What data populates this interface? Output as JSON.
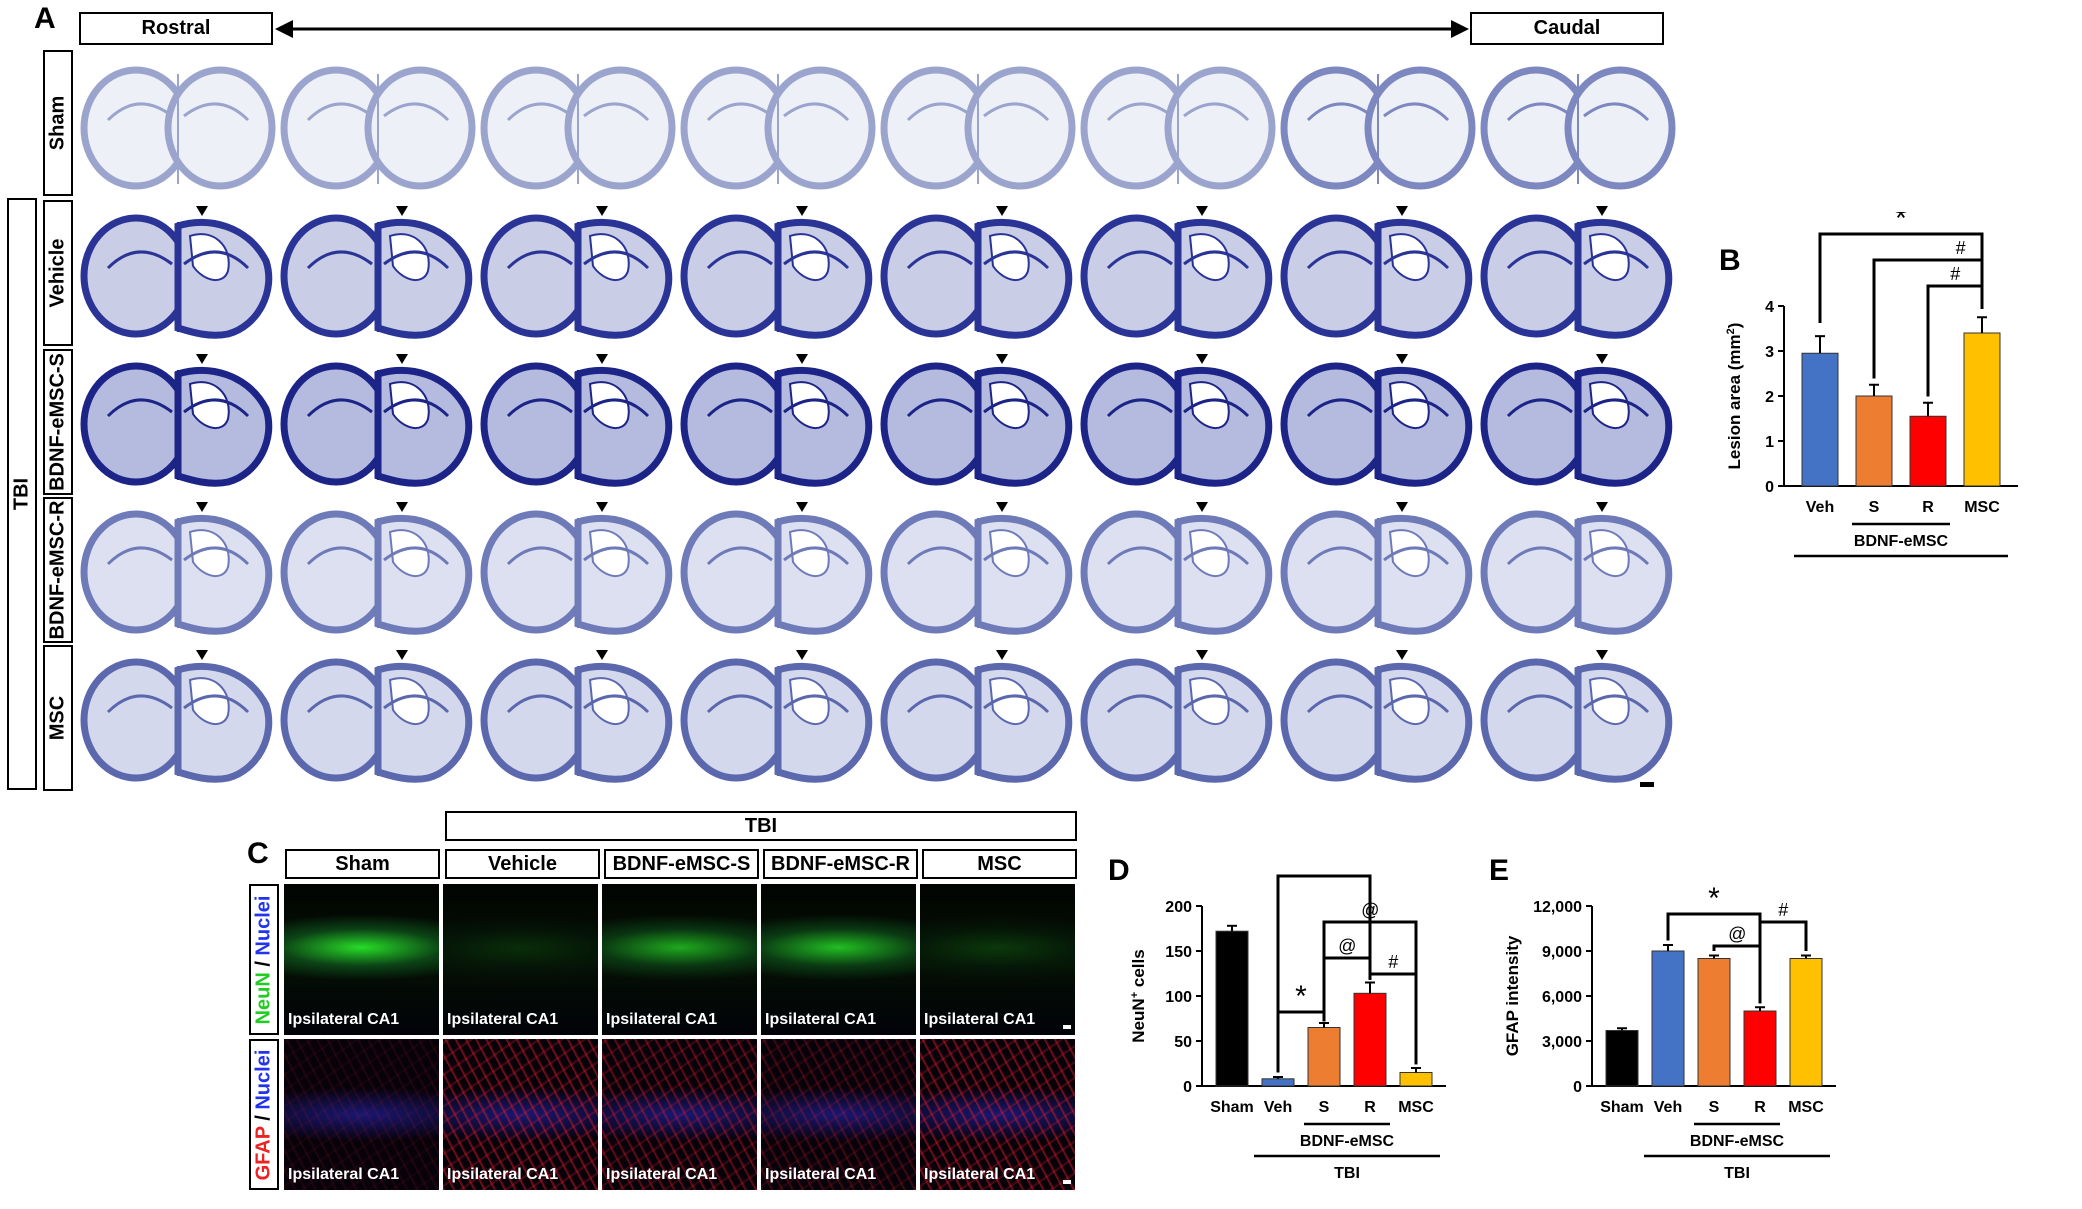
{
  "panels": {
    "A": "A",
    "B": "B",
    "C": "C",
    "D": "D",
    "E": "E"
  },
  "panel_a": {
    "rostral": "Rostral",
    "caudal": "Caudal",
    "tbi": "TBI",
    "rows": [
      "Sham",
      "Vehicle",
      "BDNF-eMSC-S",
      "BDNF-eMSC-R",
      "MSC"
    ],
    "columns": 8
  },
  "panel_c": {
    "tbi": "TBI",
    "columns": [
      "Sham",
      "Vehicle",
      "BDNF-eMSC-S",
      "BDNF-eMSC-R",
      "MSC"
    ],
    "caption": "Ipsilateral CA1",
    "row1_label": {
      "a": "NeuN",
      "sep": " / ",
      "b": "Nuclei"
    },
    "row2_label": {
      "a": "GFAP",
      "sep": " / ",
      "b": "Nuclei"
    },
    "colors": {
      "neun": "#22dd22",
      "nuclei": "#2233ff",
      "gfap": "#ff2222"
    }
  },
  "chart_data": [
    {
      "id": "B",
      "type": "bar",
      "categories": [
        "Veh",
        "S",
        "R",
        "MSC"
      ],
      "values": [
        2.95,
        2.0,
        1.55,
        3.4
      ],
      "errors": [
        0.38,
        0.25,
        0.3,
        0.35
      ],
      "colors": [
        "#4472c4",
        "#ed7d31",
        "#ff0000",
        "#ffc000"
      ],
      "ylabel": "Lesion area (mm",
      "ylabel_sup": "2",
      "ylabel_end": ")",
      "ylim": [
        0,
        4
      ],
      "yticks": [
        "0",
        "1",
        "2",
        "3",
        "4"
      ],
      "group_label": "BDNF-eMSC",
      "outer_label": "TBI",
      "sig": [
        "*",
        "#",
        "#"
      ]
    },
    {
      "id": "D",
      "type": "bar",
      "categories": [
        "Sham",
        "Veh",
        "S",
        "R",
        "MSC"
      ],
      "values": [
        172,
        8,
        65,
        103,
        15
      ],
      "errors": [
        6,
        2,
        5,
        12,
        5
      ],
      "colors": [
        "#000000",
        "#4472c4",
        "#ed7d31",
        "#ff0000",
        "#ffc000"
      ],
      "ylabel": "NeuN",
      "ylabel_sup": "+",
      "ylabel_end": " cells",
      "ylim": [
        0,
        200
      ],
      "yticks": [
        "0",
        "50",
        "100",
        "150",
        "200"
      ],
      "group_label": "BDNF-eMSC",
      "outer_label": "TBI",
      "sig": [
        "*",
        "*",
        "@",
        "@",
        "#"
      ]
    },
    {
      "id": "E",
      "type": "bar",
      "categories": [
        "Sham",
        "Veh",
        "S",
        "R",
        "MSC"
      ],
      "values": [
        3700,
        9000,
        8500,
        5000,
        8500
      ],
      "errors": [
        150,
        400,
        200,
        250,
        200
      ],
      "colors": [
        "#000000",
        "#4472c4",
        "#ed7d31",
        "#ff0000",
        "#ffc000"
      ],
      "ylabel": "GFAP intensity",
      "ylabel_sup": "",
      "ylabel_end": "",
      "ylim": [
        0,
        12000
      ],
      "yticks": [
        "0",
        "3,000",
        "6,000",
        "9,000",
        "12,000"
      ],
      "group_label": "BDNF-eMSC",
      "outer_label": "TBI",
      "sig": [
        "*",
        "@",
        "#"
      ]
    }
  ]
}
